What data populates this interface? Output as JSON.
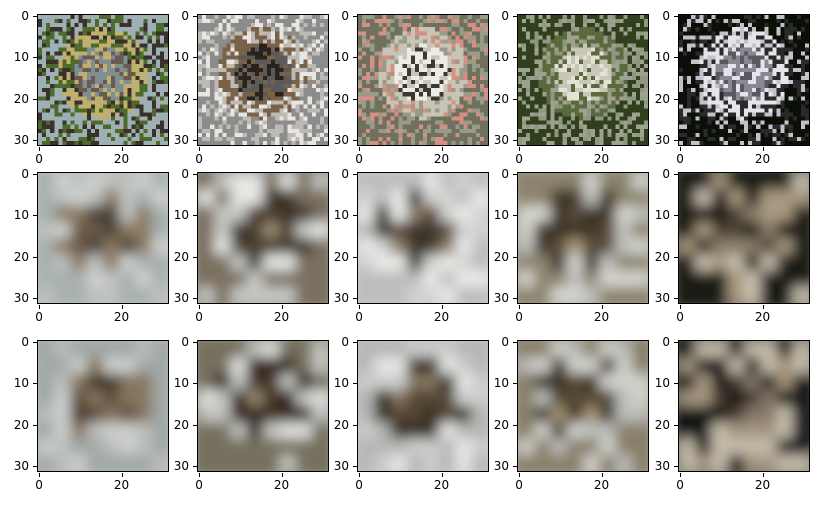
{
  "figure": {
    "rows": [
      {
        "kind": "original",
        "panels": [
          {
            "subject": "goose-on-water",
            "palette": [
              "#9fb0b4",
              "#7e8e92",
              "#3a302c",
              "#6b5a52",
              "#c0b070",
              "#4c6a2a"
            ]
          },
          {
            "subject": "canada-goose-grayscale-bg",
            "palette": [
              "#8c8c8c",
              "#5a5a5a",
              "#e8e6e2",
              "#2a221c",
              "#7a6248",
              "#bdbab4"
            ]
          },
          {
            "subject": "white-goose-head",
            "palette": [
              "#6f715e",
              "#ecebe4",
              "#d49080",
              "#3c3a30",
              "#c8c4b6",
              "#9a9a88"
            ]
          },
          {
            "subject": "white-flowers-bush",
            "palette": [
              "#30401c",
              "#c8c6b6",
              "#8e9880",
              "#e4e2d6",
              "#5a6a3c",
              "#a0a090"
            ]
          },
          {
            "subject": "gray-rabbit-dark-bg",
            "palette": [
              "#0a1008",
              "#8a8890",
              "#c4c2c8",
              "#5a5860",
              "#e6e4ea",
              "#2a2a2a"
            ]
          }
        ]
      },
      {
        "kind": "reconstruction-a",
        "panels": [
          {
            "subject": "blurred-goose",
            "palette": [
              "#a8b0b0",
              "#6a5a48",
              "#cfd2d0",
              "#4a4034",
              "#8a7a62",
              "#bfc2c0"
            ]
          },
          {
            "subject": "blurred-canada-goose",
            "palette": [
              "#7a7060",
              "#4a3c2e",
              "#e6e8e6",
              "#9a8c74",
              "#3c3026",
              "#c6c8c4"
            ]
          },
          {
            "subject": "blurred-white-goose",
            "palette": [
              "#bcbebc",
              "#5c4e3e",
              "#eaecea",
              "#8a7c66",
              "#3e342a",
              "#d2d4d2"
            ]
          },
          {
            "subject": "blurred-flowers",
            "palette": [
              "#8c846e",
              "#5a4c3a",
              "#c0c2be",
              "#a89878",
              "#3e3428",
              "#d6d6d0"
            ]
          },
          {
            "subject": "blurred-rabbit",
            "palette": [
              "#1c1a16",
              "#8a7e6a",
              "#c8c0ae",
              "#4c4234",
              "#0e0c0a",
              "#a89a80"
            ]
          }
        ]
      },
      {
        "kind": "reconstruction-b",
        "panels": [
          {
            "subject": "blurred-goose-2",
            "palette": [
              "#a2a8a6",
              "#5e4e3c",
              "#cccfcc",
              "#42382c",
              "#86765e",
              "#bcbfbc"
            ]
          },
          {
            "subject": "blurred-canada-goose-2",
            "palette": [
              "#76705e",
              "#443628",
              "#e0e2e0",
              "#948670",
              "#34281e",
              "#c2c4c0"
            ]
          },
          {
            "subject": "blurred-white-goose-2",
            "palette": [
              "#b6b8b6",
              "#544636",
              "#e6e8e6",
              "#84765e",
              "#382e24",
              "#cccecc"
            ]
          },
          {
            "subject": "blurred-flowers-2",
            "palette": [
              "#88806a",
              "#544636",
              "#bcbebb",
              "#a49474",
              "#3a3024",
              "#d2d2cc"
            ]
          },
          {
            "subject": "blurred-rabbit-2",
            "palette": [
              "#181612",
              "#84786a",
              "#c4bcaa",
              "#463c30",
              "#0c0a08",
              "#a49680"
            ]
          }
        ]
      }
    ],
    "yticks": [
      "0",
      "10",
      "20",
      "30"
    ],
    "xticks": [
      "0",
      "20"
    ]
  }
}
